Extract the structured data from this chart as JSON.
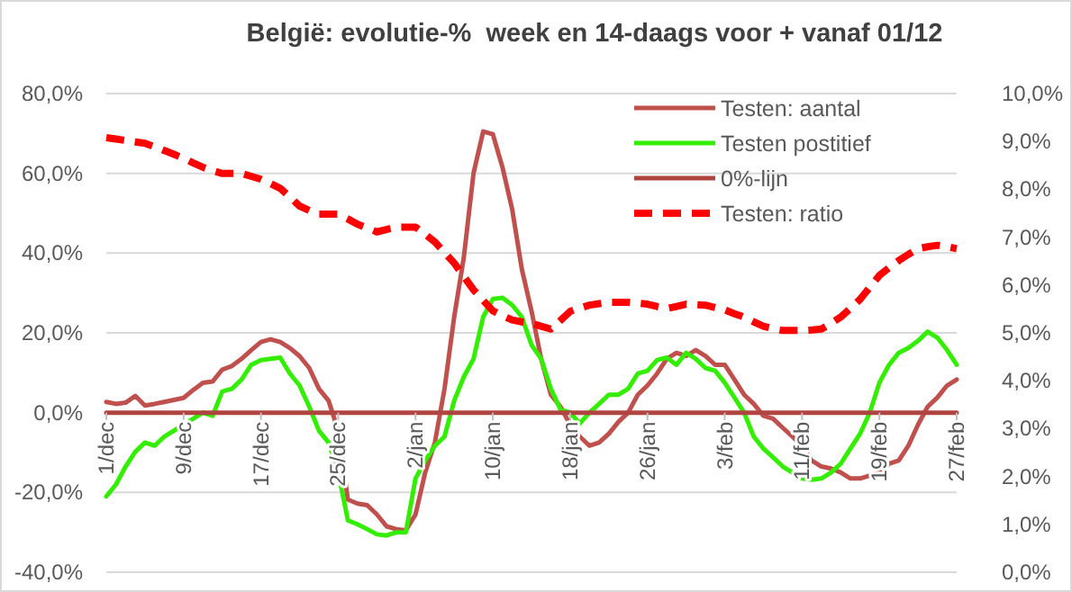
{
  "chart_data": {
    "type": "line",
    "title": "België: evolutie-%  week en 14-daags voor + vanaf 01/12",
    "categories": [
      "1/dec",
      null,
      null,
      null,
      null,
      null,
      null,
      null,
      "9/dec",
      null,
      null,
      null,
      null,
      null,
      null,
      null,
      "17/dec",
      null,
      null,
      null,
      null,
      null,
      null,
      null,
      "25/dec",
      null,
      null,
      null,
      null,
      null,
      null,
      null,
      "2/jan",
      null,
      null,
      null,
      null,
      null,
      null,
      null,
      "10/jan",
      null,
      null,
      null,
      null,
      null,
      null,
      null,
      "18/jan",
      null,
      null,
      null,
      null,
      null,
      null,
      null,
      "26/jan",
      null,
      null,
      null,
      null,
      null,
      null,
      null,
      "3/feb",
      null,
      null,
      null,
      null,
      null,
      null,
      null,
      "11/feb",
      null,
      null,
      null,
      null,
      null,
      null,
      null,
      "19/feb",
      null,
      null,
      null,
      null,
      null,
      null,
      null,
      "27/feb"
    ],
    "series": [
      {
        "name": "Testen: aantal",
        "color": "#c0504d",
        "line_style": "solid",
        "values": [
          2.7,
          2.2,
          2.5,
          4.2,
          1.8,
          2.2,
          2.7,
          3.2,
          3.7,
          5.7,
          7.5,
          7.8,
          10.8,
          11.7,
          13.5,
          15.7,
          17.7,
          18.4,
          17.7,
          16.2,
          14.2,
          11.2,
          6,
          3,
          -4.5,
          -21.8,
          -22.8,
          -23.2,
          -25.5,
          -28.5,
          -29.2,
          -29.5,
          -25.5,
          -15,
          -7.5,
          6,
          24,
          39,
          60,
          70.5,
          69.8,
          61.5,
          51,
          36,
          25.5,
          13.5,
          4.5,
          1.5,
          -3,
          -6,
          -8.3,
          -7.5,
          -5.3,
          -2.3,
          0,
          4.5,
          6.8,
          9.8,
          13.5,
          15,
          14.2,
          15.7,
          14.2,
          12,
          12,
          8.3,
          4.5,
          2.2,
          -0.8,
          -1.5,
          -3.8,
          -6,
          -8.3,
          -12,
          -13.5,
          -14,
          -15,
          -16.5,
          -16.5,
          -15.8,
          -15,
          -12.8,
          -12,
          -8.3,
          -3,
          1.5,
          3.8,
          6.8,
          8.3
        ]
      },
      {
        "name": "Testen postitief",
        "color": "#33ee00",
        "line_style": "solid",
        "values": [
          -21,
          -18,
          -13.5,
          -9.8,
          -7.5,
          -8.3,
          -6,
          -4.5,
          -3,
          -1.5,
          0,
          -0.8,
          5.3,
          6,
          8.3,
          12,
          13.2,
          13.5,
          13.8,
          9.8,
          6.8,
          1.5,
          -4.5,
          -7.5,
          -15,
          -27,
          -28,
          -29.2,
          -30.5,
          -30.8,
          -30,
          -30,
          -16.5,
          -12,
          -8.3,
          -6,
          3,
          9,
          13.5,
          24,
          28.5,
          28.8,
          27,
          24,
          17,
          13.5,
          6,
          0.8,
          0,
          -2.7,
          0,
          2.2,
          4.5,
          4.5,
          6,
          9.8,
          10.5,
          13.2,
          13.8,
          12,
          15,
          13.5,
          11.2,
          10.5,
          7.5,
          3.8,
          0,
          -6,
          -9,
          -11.2,
          -13.5,
          -15,
          -16.5,
          -16.8,
          -16.5,
          -15,
          -12.8,
          -9,
          -5.3,
          0,
          7.5,
          12,
          15,
          16.2,
          18,
          20.3,
          18.8,
          15.7,
          12
        ]
      },
      {
        "name": "0%-lijn",
        "color": "#b04440",
        "line_style": "solid",
        "values": [
          0,
          0,
          0,
          0,
          0,
          0,
          0,
          0,
          0,
          0,
          0,
          0,
          0,
          0,
          0,
          0,
          0,
          0,
          0,
          0,
          0,
          0,
          0,
          0,
          0,
          0,
          0,
          0,
          0,
          0,
          0,
          0,
          0,
          0,
          0,
          0,
          0,
          0,
          0,
          0,
          0,
          0,
          0,
          0,
          0,
          0,
          0,
          0,
          0,
          0,
          0,
          0,
          0,
          0,
          0,
          0,
          0,
          0,
          0,
          0,
          0,
          0,
          0,
          0,
          0,
          0,
          0,
          0,
          0,
          0,
          0,
          0,
          0,
          0,
          0,
          0,
          0,
          0,
          0,
          0,
          0,
          0,
          0,
          0,
          0,
          0,
          0,
          0,
          0
        ]
      },
      {
        "name": "Testen: ratio",
        "color": "#ff0000",
        "line_style": "dashed",
        "axis": "y2",
        "values": [
          9.08,
          9.05,
          9.02,
          8.99,
          8.96,
          8.89,
          8.81,
          8.73,
          8.65,
          8.55,
          8.46,
          8.39,
          8.33,
          8.33,
          8.33,
          8.27,
          8.21,
          8.12,
          8.02,
          7.84,
          7.65,
          7.56,
          7.48,
          7.48,
          7.48,
          7.38,
          7.27,
          7.19,
          7.11,
          7.16,
          7.21,
          7.21,
          7.21,
          7.06,
          6.9,
          6.68,
          6.46,
          6.18,
          5.9,
          5.68,
          5.46,
          5.36,
          5.27,
          5.23,
          5.2,
          5.14,
          5.08,
          5.26,
          5.45,
          5.52,
          5.58,
          5.61,
          5.64,
          5.64,
          5.64,
          5.62,
          5.6,
          5.55,
          5.51,
          5.55,
          5.6,
          5.59,
          5.58,
          5.53,
          5.48,
          5.4,
          5.33,
          5.23,
          5.14,
          5.09,
          5.05,
          5.05,
          5.05,
          5.06,
          5.08,
          5.2,
          5.33,
          5.51,
          5.7,
          5.95,
          6.2,
          6.36,
          6.51,
          6.64,
          6.76,
          6.8,
          6.83,
          6.8,
          6.76
        ]
      }
    ],
    "ylim": [
      -40,
      80
    ],
    "yticks": [
      {
        "value": -40,
        "label": "-40,0%"
      },
      {
        "value": -20,
        "label": "-20,0%"
      },
      {
        "value": 0,
        "label": "0,0%"
      },
      {
        "value": 20,
        "label": "20,0%"
      },
      {
        "value": 40,
        "label": "40,0%"
      },
      {
        "value": 60,
        "label": "60,0%"
      },
      {
        "value": 80,
        "label": "80,0%"
      }
    ],
    "y2lim": [
      0,
      10
    ],
    "y2ticks": [
      {
        "value": 0,
        "label": "0,0%"
      },
      {
        "value": 1,
        "label": "1,0%"
      },
      {
        "value": 2,
        "label": "2,0%"
      },
      {
        "value": 3,
        "label": "3,0%"
      },
      {
        "value": 4,
        "label": "4,0%"
      },
      {
        "value": 5,
        "label": "5,0%"
      },
      {
        "value": 6,
        "label": "6,0%"
      },
      {
        "value": 7,
        "label": "7,0%"
      },
      {
        "value": 8,
        "label": "8,0%"
      },
      {
        "value": 9,
        "label": "9,0%"
      },
      {
        "value": 10,
        "label": "10,0%"
      }
    ],
    "grid": "y",
    "legend": "top right"
  }
}
